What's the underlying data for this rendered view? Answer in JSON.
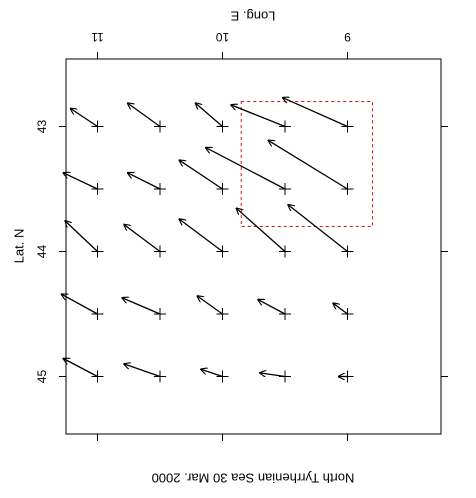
{
  "chart_data": {
    "type": "vector-field",
    "orientation": "rotated-180",
    "title": "",
    "caption": "North Tyrrhenian Sea 30 Mar. 2000",
    "xlabel": "Long. E",
    "ylabel": "Lat. N",
    "x_ticks": [
      9,
      10,
      11
    ],
    "y_ticks": [
      43,
      44,
      45
    ],
    "xlim": [
      8.5,
      11.5
    ],
    "ylim": [
      42.5,
      45.5
    ],
    "grid_lon": [
      9,
      9.5,
      10,
      10.5,
      11
    ],
    "grid_lat": [
      43,
      43.5,
      44,
      44.5,
      45
    ],
    "vectors": [
      {
        "lon": 9.0,
        "lat": 43.0,
        "u": 0.36,
        "v": -0.16
      },
      {
        "lon": 9.5,
        "lat": 43.0,
        "u": 0.3,
        "v": -0.12
      },
      {
        "lon": 10.0,
        "lat": 43.0,
        "u": 0.15,
        "v": -0.13
      },
      {
        "lon": 10.5,
        "lat": 43.0,
        "u": 0.18,
        "v": -0.13
      },
      {
        "lon": 11.0,
        "lat": 43.0,
        "u": 0.15,
        "v": -0.1
      },
      {
        "lon": 9.0,
        "lat": 43.5,
        "u": 0.44,
        "v": -0.27
      },
      {
        "lon": 9.5,
        "lat": 43.5,
        "u": 0.44,
        "v": -0.23
      },
      {
        "lon": 10.0,
        "lat": 43.5,
        "u": 0.24,
        "v": -0.16
      },
      {
        "lon": 10.5,
        "lat": 43.5,
        "u": 0.18,
        "v": -0.09
      },
      {
        "lon": 11.0,
        "lat": 43.5,
        "u": 0.19,
        "v": -0.09
      },
      {
        "lon": 9.0,
        "lat": 44.0,
        "u": 0.33,
        "v": -0.26
      },
      {
        "lon": 9.5,
        "lat": 44.0,
        "u": 0.27,
        "v": -0.24
      },
      {
        "lon": 10.0,
        "lat": 44.0,
        "u": 0.24,
        "v": -0.18
      },
      {
        "lon": 10.5,
        "lat": 44.0,
        "u": 0.2,
        "v": -0.15
      },
      {
        "lon": 11.0,
        "lat": 44.0,
        "u": 0.18,
        "v": -0.17
      },
      {
        "lon": 9.0,
        "lat": 44.5,
        "u": 0.08,
        "v": -0.06
      },
      {
        "lon": 9.5,
        "lat": 44.5,
        "u": 0.15,
        "v": -0.08
      },
      {
        "lon": 10.0,
        "lat": 44.5,
        "u": 0.14,
        "v": -0.1
      },
      {
        "lon": 10.5,
        "lat": 44.5,
        "u": 0.21,
        "v": -0.09
      },
      {
        "lon": 11.0,
        "lat": 44.5,
        "u": 0.2,
        "v": -0.11
      },
      {
        "lon": 9.0,
        "lat": 45.0,
        "u": 0.05,
        "v": 0.0
      },
      {
        "lon": 9.5,
        "lat": 45.0,
        "u": 0.14,
        "v": -0.02
      },
      {
        "lon": 10.0,
        "lat": 45.0,
        "u": 0.12,
        "v": -0.04
      },
      {
        "lon": 10.5,
        "lat": 45.0,
        "u": 0.2,
        "v": -0.07
      },
      {
        "lon": 11.0,
        "lat": 45.0,
        "u": 0.19,
        "v": -0.1
      }
    ],
    "highlight_box": {
      "lon": [
        8.8,
        9.85
      ],
      "lat": [
        42.8,
        43.8
      ],
      "color": "#dd1111",
      "style": "dashed"
    },
    "grid": false
  }
}
